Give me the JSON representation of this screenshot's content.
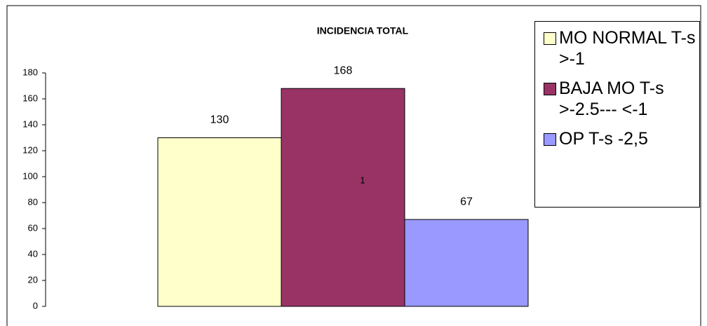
{
  "chart_data": {
    "type": "bar",
    "title": "INCIDENCIA TOTAL",
    "categories": [
      "1"
    ],
    "series": [
      {
        "name": "MO NORMAL T-s >-1",
        "color": "#ffffcc",
        "values": [
          130
        ]
      },
      {
        "name": "BAJA MO  T-s >-2.5--- <-1",
        "color": "#993366",
        "values": [
          168
        ]
      },
      {
        "name": "OP  T-s -2,5",
        "color": "#9999ff",
        "values": [
          67
        ]
      }
    ],
    "ylim": [
      0,
      180
    ],
    "yticks": [
      0,
      20,
      40,
      60,
      80,
      100,
      120,
      140,
      160,
      180
    ],
    "legend": "right"
  }
}
